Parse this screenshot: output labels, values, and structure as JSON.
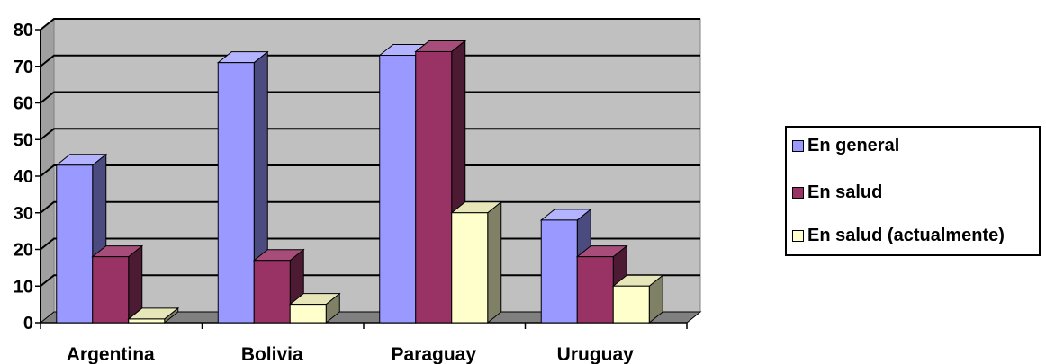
{
  "chart_data": {
    "type": "bar",
    "title": "",
    "xlabel": "",
    "ylabel": "",
    "ylim": [
      0,
      80
    ],
    "yticks": [
      0,
      10,
      20,
      30,
      40,
      50,
      60,
      70,
      80
    ],
    "ytick_labels": [
      "0",
      "10",
      "20",
      "30",
      "40",
      "50",
      "60",
      "70",
      "80"
    ],
    "categories": [
      "Argentina",
      "Bolivia",
      "Paraguay",
      "Uruguay"
    ],
    "series": [
      {
        "name": "En general",
        "values": [
          43,
          71,
          73,
          28
        ],
        "color": "#9999ff",
        "side_color": "#4b4b80",
        "top_color": "#b3b3ff"
      },
      {
        "name": "En salud",
        "values": [
          18,
          17,
          74,
          18
        ],
        "color": "#993366",
        "side_color": "#4d1a33",
        "top_color": "#a64d79"
      },
      {
        "name": "En salud (actualmente)",
        "values": [
          1,
          5,
          30,
          10
        ],
        "color": "#ffffcc",
        "side_color": "#808066",
        "top_color": "#e6e6b8"
      }
    ],
    "grid": true,
    "three_d": true,
    "legend_position": "right",
    "plot_background": "#c0c0c0"
  },
  "legend": {
    "items": [
      {
        "label": "En general",
        "color": "#9999ff"
      },
      {
        "label": "En salud",
        "color": "#993366"
      },
      {
        "label": "En salud (actualmente)",
        "color": "#ffffcc"
      }
    ]
  }
}
